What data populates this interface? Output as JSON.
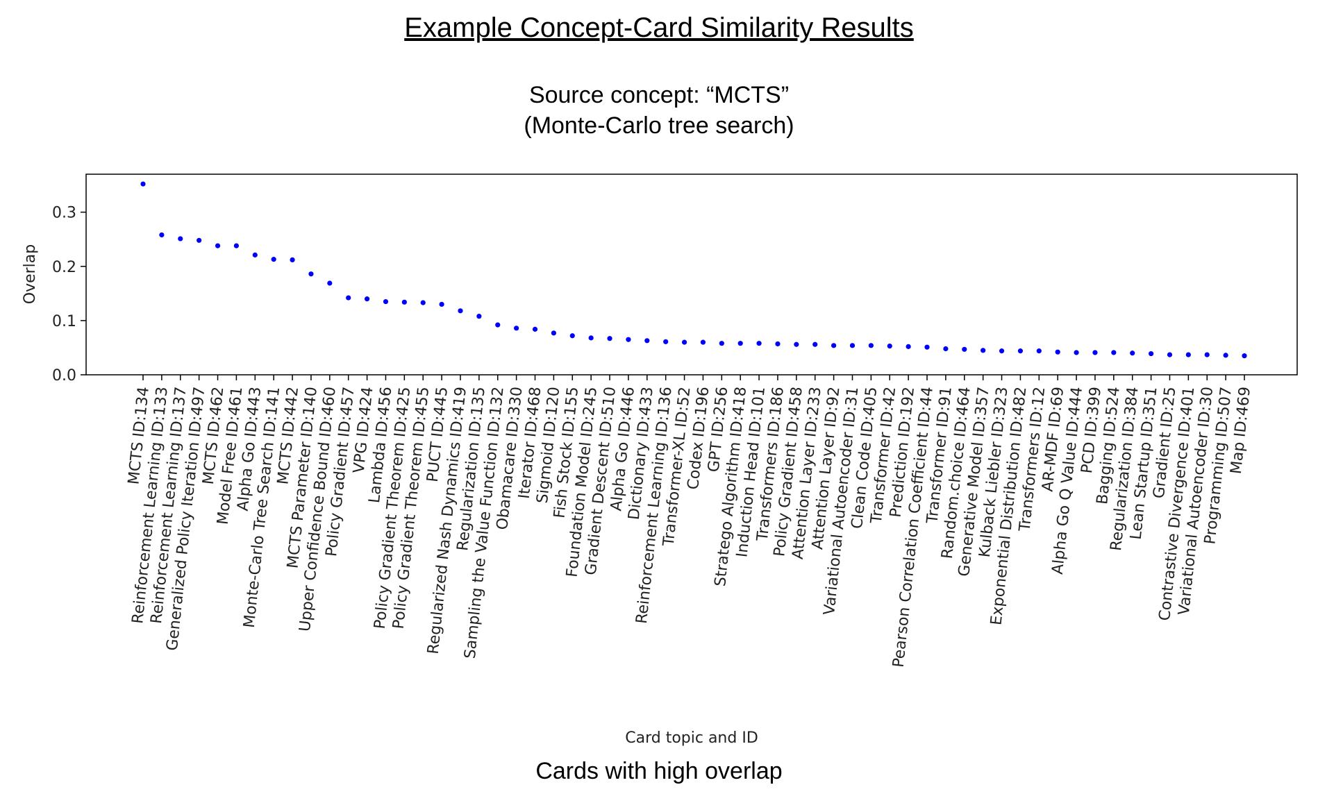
{
  "figure": {
    "title": "Example Concept-Card Similarity Results",
    "subtitle_line1": "Source concept: “MCTS”",
    "subtitle_line2": "(Monte-Carlo tree search)",
    "caption": "Cards with high overlap"
  },
  "chart_data": {
    "type": "scatter",
    "title": "",
    "xlabel": "Card topic and ID",
    "ylabel": "Overlap",
    "ylim": [
      0.0,
      0.37
    ],
    "yticks": [
      "0.0",
      "0.1",
      "0.2",
      "0.3"
    ],
    "marker_color": "#0000ff",
    "categories": [
      "MCTS ID:134",
      "Reinforcement Learning ID:133",
      "Reinforcement Learning ID:137",
      "Generalized Policy Iteration ID:497",
      "MCTS ID:462",
      "Model Free ID:461",
      "Alpha Go ID:443",
      "Monte-Carlo Tree Search ID:141",
      "MCTS ID:442",
      "MCTS Parameter ID:140",
      "Upper Confidence Bound ID:460",
      "Policy Gradient ID:457",
      "VPG ID:424",
      "Lambda ID:456",
      "Policy Gradient Theorem ID:425",
      "Policy Gradient Theorem ID:455",
      "PUCT ID:445",
      "Regularized Nash Dynamics ID:419",
      "Regularization ID:135",
      "Sampling the Value Function ID:132",
      "Obamacare ID:330",
      "Iterator ID:468",
      "Sigmoid ID:120",
      "Fish Stock ID:155",
      "Foundation Model ID:245",
      "Gradient Descent ID:510",
      "Alpha Go ID:446",
      "Dictionary ID:433",
      "Reinforcement Learning ID:136",
      "Transformer-XL ID:52",
      "Codex ID:196",
      "GPT ID:256",
      "Stratego Algorithm ID:418",
      "Induction Head ID:101",
      "Transformers ID:186",
      "Policy Gradient ID:458",
      "Attention Layer ID:233",
      "Attention Layer ID:92",
      "Variational Autoencoder ID:31",
      "Clean Code ID:405",
      "Transformer ID:42",
      "Prediction ID:192",
      "Pearson Correlation Coefficient ID:44",
      "Transformer ID:91",
      "Random.choice ID:464",
      "Generative Model ID:357",
      "Kulback Liebler ID:323",
      "Exponential Distribution ID:482",
      "Transformers ID:12",
      "AR-MDF ID:69",
      "Alpha Go Q Value ID:444",
      "PCD ID:399",
      "Bagging ID:524",
      "Regularization ID:384",
      "Lean Startup ID:351",
      "Gradient ID:25",
      "Contrastive Divergence ID:401",
      "Variational Autoencoder ID:30",
      "Programming ID:507",
      "Map ID:469"
    ],
    "values": [
      0.352,
      0.258,
      0.251,
      0.248,
      0.238,
      0.238,
      0.221,
      0.213,
      0.212,
      0.186,
      0.169,
      0.142,
      0.14,
      0.135,
      0.134,
      0.133,
      0.13,
      0.118,
      0.108,
      0.092,
      0.086,
      0.084,
      0.077,
      0.072,
      0.068,
      0.067,
      0.065,
      0.063,
      0.061,
      0.06,
      0.06,
      0.058,
      0.058,
      0.058,
      0.057,
      0.056,
      0.056,
      0.054,
      0.054,
      0.054,
      0.053,
      0.052,
      0.051,
      0.048,
      0.047,
      0.045,
      0.044,
      0.044,
      0.044,
      0.042,
      0.041,
      0.041,
      0.041,
      0.04,
      0.039,
      0.037,
      0.037,
      0.037,
      0.036,
      0.035
    ]
  }
}
